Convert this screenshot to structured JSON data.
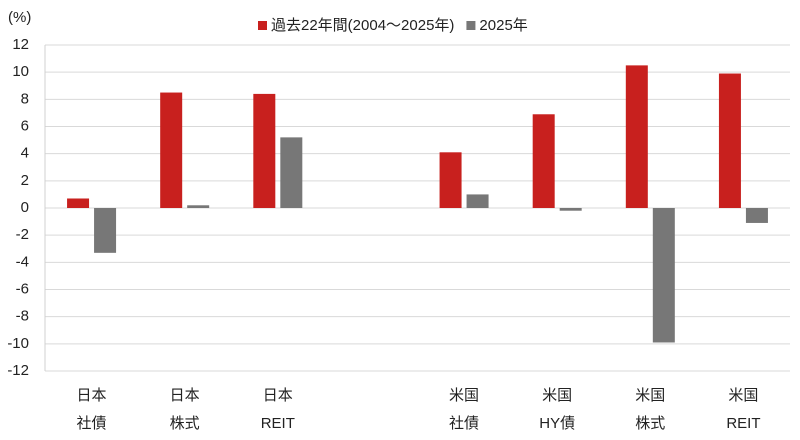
{
  "chart_data": {
    "type": "bar",
    "y_unit_label": "(%)",
    "categories": [
      [
        "日本",
        "社債"
      ],
      [
        "日本",
        "株式"
      ],
      [
        "日本",
        "REIT"
      ],
      null,
      [
        "米国",
        "社債"
      ],
      [
        "米国",
        "HY債"
      ],
      [
        "米国",
        "株式"
      ],
      [
        "米国",
        "REIT"
      ]
    ],
    "series": [
      {
        "name": "過去22年間(2004～2025年)",
        "color": "#c8201e",
        "values": [
          0.7,
          8.5,
          8.4,
          null,
          4.1,
          6.9,
          10.5,
          9.9
        ]
      },
      {
        "name": "2025年",
        "color": "#777777",
        "values": [
          -3.3,
          0.2,
          5.2,
          null,
          1.0,
          -0.2,
          -9.9,
          -1.1
        ]
      }
    ],
    "ylim": [
      -12,
      12
    ],
    "yticks": [
      -12,
      -10,
      -8,
      -6,
      -4,
      -2,
      0,
      2,
      4,
      6,
      8,
      10,
      12
    ],
    "grid": true
  }
}
